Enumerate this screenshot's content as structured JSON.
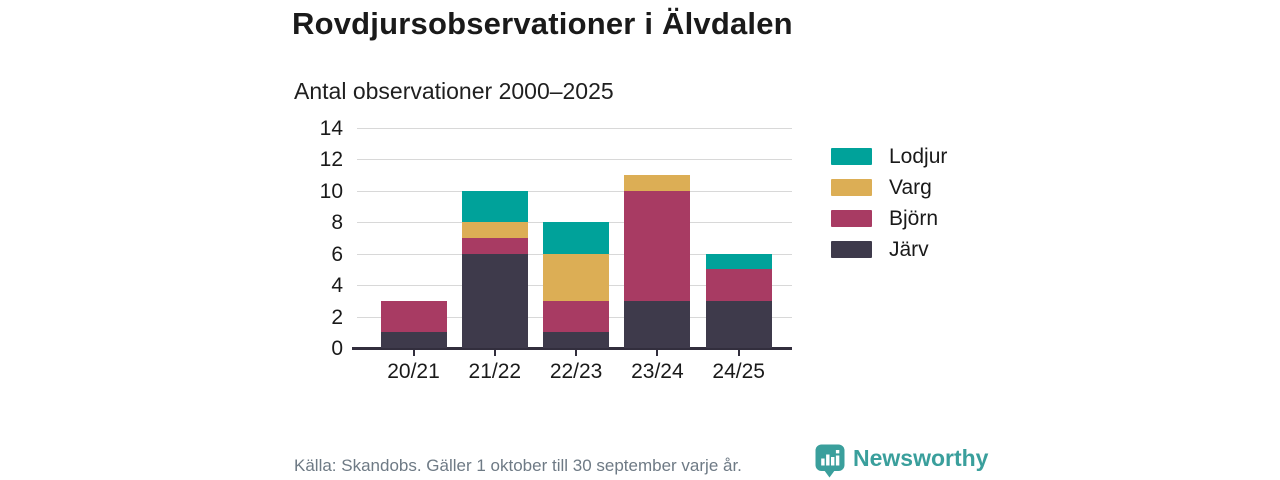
{
  "header": {
    "title": "Rovdjursobservationer i Älvdalen",
    "subtitle": "Antal observationer 2000–2025"
  },
  "footer": {
    "source": "Källa: Skandobs. Gäller 1 oktober till 30 september varje år.",
    "brand": "Newsworthy"
  },
  "colors": {
    "lodjur_teal": "#00a29a",
    "varg_gold": "#dcae55",
    "bjorn_maroon": "#a83b63",
    "jarv_dark": "#3e3a4b",
    "axis": "#322e3d",
    "gridline": "#d8d8d8",
    "text_dark": "#1a1a1a",
    "text_muted": "#6e7a85",
    "brand_teal": "#3a9f9c"
  },
  "chart_data": {
    "type": "bar",
    "stacked": true,
    "title": "Rovdjursobservationer i Älvdalen",
    "subtitle": "Antal observationer 2000–2025",
    "categories": [
      "20/21",
      "21/22",
      "22/23",
      "23/24",
      "24/25"
    ],
    "series": [
      {
        "name": "Lodjur",
        "color": "#00a29a",
        "values": [
          0,
          2,
          2,
          0,
          1
        ]
      },
      {
        "name": "Varg",
        "color": "#dcae55",
        "values": [
          0,
          1,
          3,
          1,
          0
        ]
      },
      {
        "name": "Björn",
        "color": "#a83b63",
        "values": [
          2,
          1,
          2,
          7,
          2
        ]
      },
      {
        "name": "Järv",
        "color": "#3e3a4b",
        "values": [
          1,
          6,
          1,
          3,
          3
        ]
      }
    ],
    "stack_order_bottom_to_top": [
      "Järv",
      "Björn",
      "Varg",
      "Lodjur"
    ],
    "totals": [
      3,
      10,
      8,
      11,
      6
    ],
    "ylim": [
      0,
      14
    ],
    "yticks": [
      0,
      2,
      4,
      6,
      8,
      10,
      12,
      14
    ],
    "xlabel": "",
    "ylabel": "",
    "grid": "horizontal",
    "legend_position": "right"
  }
}
